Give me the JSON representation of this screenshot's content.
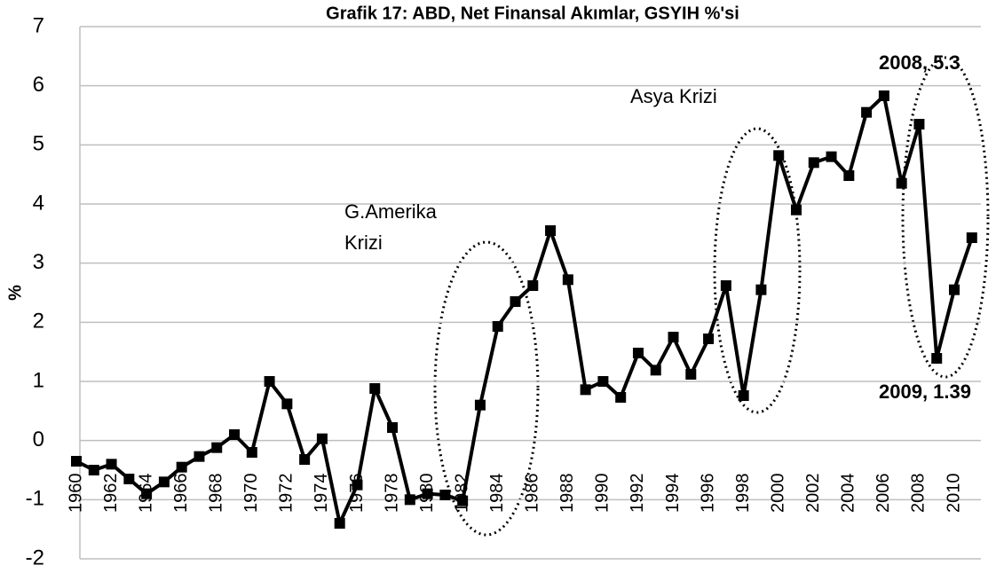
{
  "chart_data": {
    "type": "line",
    "title": "Grafik 17: ABD, Net Finansal Akımlar, GSYIH %'si",
    "y_label": "%",
    "categories": [
      "1960",
      null,
      "1962",
      null,
      "1964",
      null,
      "1966",
      null,
      "1968",
      null,
      "1970",
      null,
      "1972",
      null,
      "1974",
      null,
      "1976",
      null,
      "1978",
      null,
      "1980",
      null,
      "1982",
      null,
      "1984",
      null,
      "1986",
      null,
      "1988",
      null,
      "1990",
      null,
      "1992",
      null,
      "1994",
      null,
      "1996",
      null,
      "1998",
      null,
      "2000",
      null,
      "2002",
      null,
      "2004",
      null,
      "2006",
      null,
      "2008",
      null,
      "2010",
      null
    ],
    "series": [
      {
        "name": "Net Finansal Akımlar",
        "color": "#000000",
        "values": [
          -0.35,
          -0.5,
          -0.4,
          -0.65,
          -0.9,
          -0.7,
          -0.45,
          -0.27,
          -0.12,
          0.1,
          -0.2,
          1.0,
          0.62,
          -0.32,
          0.03,
          -1.4,
          -0.75,
          0.88,
          0.22,
          -1.0,
          -0.9,
          -0.92,
          -1.02,
          0.6,
          1.93,
          2.35,
          2.62,
          3.55,
          2.72,
          0.86,
          1.0,
          0.73,
          1.48,
          1.19,
          1.75,
          1.12,
          1.72,
          2.62,
          0.76,
          2.55,
          4.82,
          3.9,
          4.7,
          4.8,
          4.48,
          5.55,
          5.83,
          4.35,
          5.35,
          1.39,
          2.55,
          3.43
        ]
      }
    ],
    "ylim": [
      -2,
      7
    ],
    "yticks": [
      -2,
      -1,
      0,
      1,
      2,
      3,
      4,
      5,
      6,
      7
    ],
    "grid": true,
    "annotations": [
      "G.Amerika",
      "Krizi",
      "Asya Krizi",
      "2008, 5.3",
      "2009, 1.39"
    ]
  }
}
